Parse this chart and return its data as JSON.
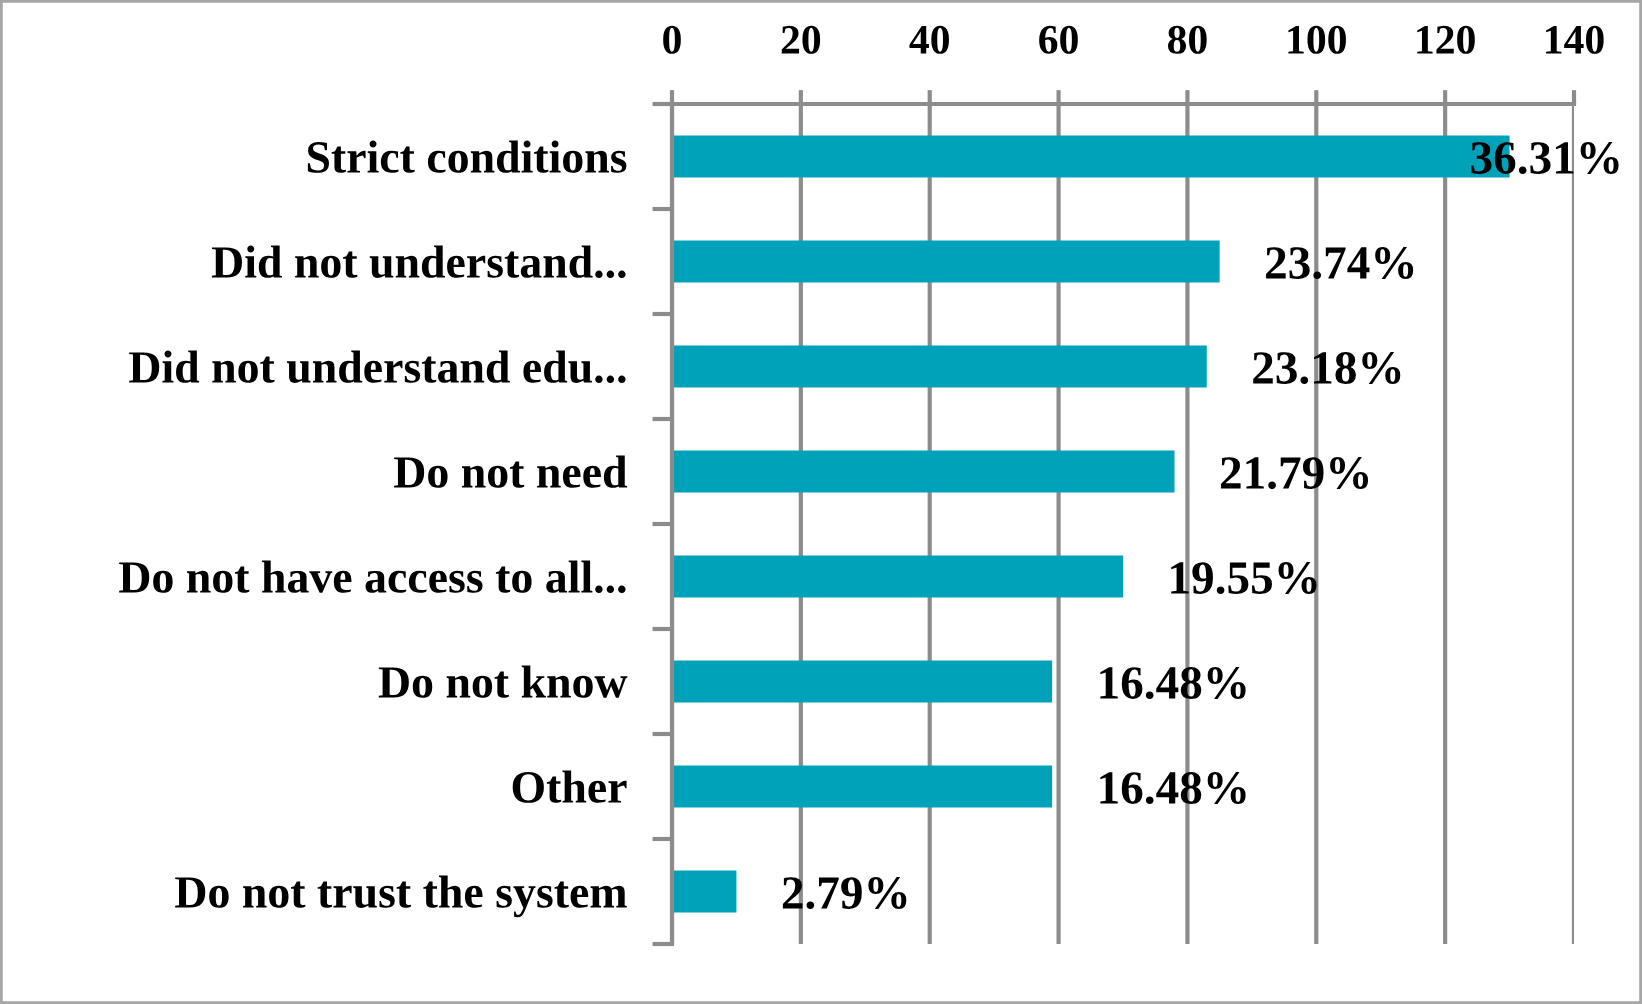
{
  "chart_data": {
    "type": "bar",
    "orientation": "horizontal",
    "categories": [
      "Strict conditions",
      "Did not understand...",
      "Did not understand edu...",
      "Do not need",
      "Do not have access to all...",
      "Do not know",
      "Other",
      "Do not trust the system"
    ],
    "values": [
      130,
      85,
      83,
      78,
      70,
      59,
      59,
      10
    ],
    "color": "#00a2b9",
    "annotations": [
      {
        "text": "36.31%",
        "x": 130,
        "y": "Strict conditions"
      },
      {
        "text": "23.74%",
        "x": 85,
        "y": "Did not understand..."
      },
      {
        "text": "23.18%",
        "x": 83,
        "y": "Did not understand edu..."
      },
      {
        "text": "21.79%",
        "x": 78,
        "y": "Do not need"
      },
      {
        "text": "19.55%",
        "x": 70,
        "y": "Do not have access to all..."
      },
      {
        "text": "16.48%",
        "x": 59,
        "y": "Do not know"
      },
      {
        "text": "16.48%",
        "x": 59,
        "y": "Other"
      },
      {
        "text": "2.79%",
        "x": 10,
        "y": "Do not trust the system"
      }
    ],
    "xlim": [
      0,
      140
    ],
    "xticks": [
      0,
      20,
      40,
      60,
      80,
      100,
      120,
      140
    ],
    "grid": "x"
  }
}
